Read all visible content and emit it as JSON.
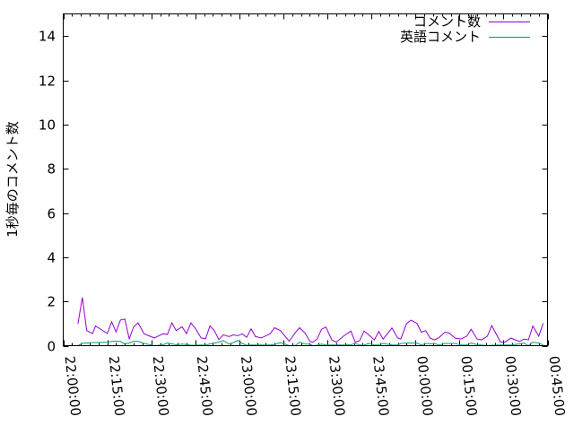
{
  "chart_data": {
    "type": "line",
    "title": "",
    "xlabel": "",
    "ylabel": "1秒毎のコメント数",
    "xlim": [
      "22:00:00",
      "00:45:00"
    ],
    "ylim": [
      0,
      15
    ],
    "grid": false,
    "legend_position": "top-right",
    "xticks": [
      "22:00:00",
      "22:15:00",
      "22:30:00",
      "22:45:00",
      "23:00:00",
      "23:15:00",
      "23:30:00",
      "23:45:00",
      "00:00:00",
      "00:15:00",
      "00:30:00",
      "00:45:00"
    ],
    "yticks": [
      0,
      2,
      4,
      6,
      8,
      10,
      12,
      14
    ],
    "x": [
      "22:05:00",
      "22:06:30",
      "22:08:00",
      "22:10:00",
      "22:11:00",
      "22:15:00",
      "22:16:30",
      "22:18:00",
      "22:19:30",
      "22:21:00",
      "22:22:30",
      "22:24:00",
      "22:25:30",
      "22:27:30",
      "22:31:00",
      "22:34:00",
      "22:35:30",
      "22:37:00",
      "22:38:30",
      "22:40:30",
      "22:42:00",
      "22:43:30",
      "22:45:00",
      "22:47:00",
      "22:48:30",
      "22:50:00",
      "22:51:30",
      "22:53:00",
      "22:54:30",
      "22:56:30",
      "22:58:00",
      "22:59:30",
      "23:01:00",
      "23:02:30",
      "23:04:00",
      "23:05:30",
      "23:07:30",
      "23:10:30",
      "23:12:00",
      "23:14:00",
      "23:17:00",
      "23:19:00",
      "23:20:30",
      "23:22:30",
      "23:24:00",
      "23:25:00",
      "23:26:30",
      "23:28:00",
      "23:29:30",
      "23:31:30",
      "23:33:00",
      "23:35:30",
      "23:38:00",
      "23:39:30",
      "23:41:00",
      "23:42:30",
      "23:44:00",
      "23:46:00",
      "23:47:30",
      "23:49:00",
      "23:52:00",
      "23:54:00",
      "23:55:00",
      "23:57:00",
      "23:58:30",
      "00:00:30",
      "00:02:00",
      "00:03:30",
      "00:05:00",
      "00:06:30",
      "00:08:00",
      "00:10:00",
      "00:11:30",
      "00:13:30",
      "00:15:30",
      "00:17:30",
      "00:19:00",
      "00:21:00",
      "00:22:30",
      "00:24:30",
      "00:26:00",
      "00:29:00",
      "00:30:30",
      "00:32:30",
      "00:35:30",
      "00:37:00",
      "00:38:30",
      "00:40:00",
      "00:42:00",
      "00:43:30"
    ],
    "series": [
      {
        "name": "コメント数",
        "color": "#9400d3",
        "values": [
          0.99,
          2.18,
          0.68,
          0.55,
          0.89,
          0.55,
          1.08,
          0.62,
          1.16,
          1.2,
          0.31,
          0.85,
          1.03,
          0.54,
          0.35,
          0.54,
          0.51,
          1.03,
          0.68,
          0.85,
          0.54,
          1.03,
          0.78,
          0.35,
          0.31,
          0.89,
          0.68,
          0.27,
          0.49,
          0.41,
          0.49,
          0.45,
          0.54,
          0.38,
          0.76,
          0.41,
          0.35,
          0.54,
          0.81,
          0.68,
          0.2,
          0.58,
          0.81,
          0.55,
          0.2,
          0.16,
          0.3,
          0.74,
          0.84,
          0.26,
          0.16,
          0.43,
          0.66,
          0.16,
          0.23,
          0.66,
          0.5,
          0.26,
          0.64,
          0.3,
          0.8,
          0.34,
          0.3,
          1.01,
          1.15,
          1.01,
          0.61,
          0.68,
          0.34,
          0.26,
          0.36,
          0.61,
          0.57,
          0.34,
          0.3,
          0.43,
          0.74,
          0.3,
          0.26,
          0.43,
          0.91,
          0.16,
          0.16,
          0.34,
          0.19,
          0.3,
          0.26,
          0.89,
          0.43,
          1.01
        ]
      },
      {
        "name": "英語コメント",
        "color": "#009e73",
        "values": [
          0,
          0.11,
          0.12,
          0.14,
          0.14,
          0.16,
          0.2,
          0.2,
          0.19,
          0.07,
          0.12,
          0.2,
          0.2,
          0.1,
          0,
          0.04,
          0.12,
          0.08,
          0.04,
          0.07,
          0.05,
          0.02,
          0.02,
          0.03,
          0.02,
          0.08,
          0.12,
          0.16,
          0.23,
          0.07,
          0.14,
          0.24,
          0.1,
          0.02,
          0.03,
          0.03,
          0.03,
          0.03,
          0.05,
          0.14,
          0,
          0,
          0.16,
          0.07,
          0.07,
          0,
          0.02,
          0.07,
          0.03,
          0.03,
          0.03,
          0.03,
          0.04,
          0.1,
          0.03,
          0.02,
          0.1,
          0.03,
          0.03,
          0.1,
          0.03,
          0.03,
          0.1,
          0.12,
          0.12,
          0.12,
          0.03,
          0.1,
          0.08,
          0.1,
          0.03,
          0.1,
          0.1,
          0.1,
          0.03,
          0.03,
          0.12,
          0.04,
          0.03,
          0,
          0.02,
          0.03,
          0.03,
          0.03,
          0.08,
          0.12,
          0,
          0.16,
          0.12,
          0.03
        ]
      }
    ]
  }
}
